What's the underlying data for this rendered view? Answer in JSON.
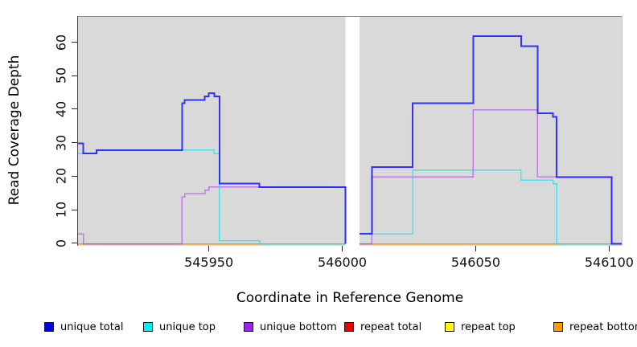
{
  "figure": {
    "background": "#ffffff",
    "panel_background": "#d9d9d9",
    "gap_band_color": "#ffffff"
  },
  "chart_data": {
    "type": "line",
    "subtype": "step-coverage",
    "title": "",
    "xlabel": "Coordinate in Reference Genome",
    "ylabel": "Read Coverage Depth",
    "xlim": [
      545901,
      546104.7
    ],
    "ylim": [
      -0.55,
      67.8
    ],
    "x_ticks": [
      545950,
      546000,
      546050,
      546100
    ],
    "y_ticks": [
      0,
      10,
      20,
      30,
      40,
      50,
      60
    ],
    "grid": false,
    "legend_position": "bottom",
    "gap_region": {
      "from": 546001.2,
      "to": 546006.5
    },
    "series": [
      {
        "name": "repeat total",
        "color": "#d40000",
        "opacity": 1,
        "width": 1.2,
        "segments": [
          [
            [
              545901,
              0
            ],
            [
              546001.2,
              0
            ]
          ],
          [
            [
              546006.5,
              0
            ],
            [
              546104.7,
              0
            ]
          ]
        ]
      },
      {
        "name": "repeat top",
        "color": "#ffff00",
        "opacity": 1,
        "width": 1.2,
        "segments": [
          [
            [
              545901,
              0
            ],
            [
              546001.2,
              0
            ]
          ],
          [
            [
              546006.5,
              0
            ],
            [
              546104.7,
              0
            ]
          ]
        ]
      },
      {
        "name": "repeat bottom",
        "color": "#ff9500",
        "opacity": 1,
        "width": 1.6,
        "segments": [
          [
            [
              545901,
              0
            ],
            [
              546001.2,
              0
            ]
          ],
          [
            [
              546006.5,
              0
            ],
            [
              546104.7,
              0
            ]
          ]
        ]
      },
      {
        "name": "unique bottom",
        "color": "#a020f0",
        "opacity": 0.5,
        "width": 1.5,
        "segments": [
          [
            [
              545901,
              3
            ],
            [
              545903,
              0
            ],
            [
              545940,
              14
            ],
            [
              545941,
              15
            ],
            [
              545948.5,
              16
            ],
            [
              545950,
              17
            ],
            [
              546001.2,
              0
            ]
          ],
          [
            [
              546006.5,
              0
            ],
            [
              546011.1,
              20
            ],
            [
              546049.1,
              40
            ],
            [
              546073.2,
              20
            ],
            [
              546101,
              0
            ],
            [
              546104.7,
              0
            ]
          ]
        ]
      },
      {
        "name": "unique top",
        "color": "#00e5ee",
        "opacity": 0.65,
        "width": 1.5,
        "segments": [
          [
            [
              545901,
              27
            ],
            [
              545908,
              28
            ],
            [
              545952,
              27
            ],
            [
              545954,
              1
            ],
            [
              545969,
              0
            ],
            [
              546001.2,
              0
            ]
          ],
          [
            [
              546006.5,
              3
            ],
            [
              546026.4,
              22
            ],
            [
              546067,
              19
            ],
            [
              546079,
              18
            ],
            [
              546080.3,
              0
            ],
            [
              546104.7,
              0
            ]
          ]
        ]
      },
      {
        "name": "unique total",
        "color": "#1414ff",
        "opacity": 0.85,
        "width": 2,
        "segments": [
          [
            [
              545901,
              30
            ],
            [
              545903,
              27
            ],
            [
              545908,
              28
            ],
            [
              545940,
              42
            ],
            [
              545941,
              43
            ],
            [
              545948.5,
              44
            ],
            [
              545950,
              45
            ],
            [
              545952,
              44
            ],
            [
              545954,
              18
            ],
            [
              545969,
              17
            ],
            [
              546001.2,
              0
            ]
          ],
          [
            [
              546006.5,
              3
            ],
            [
              546011.1,
              23
            ],
            [
              546026.4,
              42
            ],
            [
              546049.1,
              62
            ],
            [
              546067,
              59
            ],
            [
              546073.2,
              39
            ],
            [
              546079,
              38
            ],
            [
              546080.3,
              20
            ],
            [
              546101,
              0
            ],
            [
              546104.7,
              0
            ]
          ]
        ]
      }
    ]
  },
  "legend": {
    "items": [
      {
        "label": "unique total",
        "color": "#0000ee"
      },
      {
        "label": "unique top",
        "color": "#00eeee"
      },
      {
        "label": "unique bottom",
        "color": "#a020f0"
      },
      {
        "label": "repeat total",
        "color": "#ee0000"
      },
      {
        "label": "repeat top",
        "color": "#ffff00"
      },
      {
        "label": "repeat bottom",
        "color": "#ff9900"
      }
    ]
  }
}
